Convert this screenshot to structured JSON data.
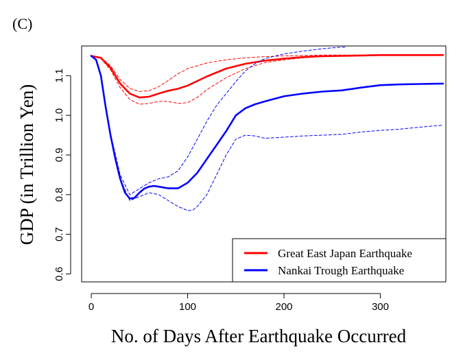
{
  "panel_label": "(C)",
  "chart_data": {
    "type": "line",
    "title": "",
    "xlabel": "No. of Days After Earthquake Occurred",
    "ylabel": "GDP (in Trillion Yen)",
    "xlim": [
      -10,
      368
    ],
    "ylim": [
      0.58,
      1.175
    ],
    "xticks": [
      0,
      100,
      200,
      300
    ],
    "yticks": [
      0.6,
      0.7,
      0.8,
      0.9,
      1.0,
      1.1
    ],
    "yticklabels": [
      "0.6",
      "0.7",
      "0.8",
      "0.9",
      "1.0",
      "1.1"
    ],
    "grid": false,
    "legend_position": "bottom-right",
    "series": [
      {
        "name": "Great East Japan Earthquake",
        "color": "#ff0000",
        "style": "solid",
        "x": [
          0,
          10,
          20,
          30,
          40,
          50,
          60,
          70,
          80,
          90,
          100,
          120,
          140,
          160,
          180,
          200,
          220,
          240,
          260,
          280,
          300,
          320,
          340,
          365
        ],
        "y": [
          1.15,
          1.145,
          1.12,
          1.08,
          1.055,
          1.045,
          1.047,
          1.055,
          1.062,
          1.067,
          1.075,
          1.098,
          1.118,
          1.13,
          1.138,
          1.143,
          1.147,
          1.149,
          1.15,
          1.151,
          1.152,
          1.152,
          1.152,
          1.152
        ]
      },
      {
        "name": "Great East Japan Earthquake upper band",
        "color": "#ff0000",
        "style": "dashed",
        "x": [
          0,
          10,
          20,
          30,
          40,
          50,
          60,
          70,
          80,
          90,
          100,
          120,
          140,
          160,
          180,
          200,
          220,
          240,
          260,
          280,
          300,
          365
        ],
        "y": [
          1.15,
          1.146,
          1.125,
          1.09,
          1.068,
          1.06,
          1.062,
          1.072,
          1.088,
          1.105,
          1.118,
          1.132,
          1.14,
          1.145,
          1.148,
          1.15,
          1.151,
          1.152,
          1.152,
          1.152,
          1.152,
          1.152
        ]
      },
      {
        "name": "Great East Japan Earthquake lower band",
        "color": "#ff0000",
        "style": "dashed",
        "x": [
          0,
          10,
          20,
          30,
          40,
          50,
          60,
          70,
          80,
          90,
          100,
          110,
          120,
          140,
          160,
          180,
          200,
          220,
          240,
          260,
          280,
          300,
          365
        ],
        "y": [
          1.15,
          1.143,
          1.115,
          1.07,
          1.04,
          1.028,
          1.03,
          1.035,
          1.035,
          1.03,
          1.032,
          1.045,
          1.065,
          1.095,
          1.118,
          1.133,
          1.14,
          1.145,
          1.148,
          1.15,
          1.151,
          1.152,
          1.152
        ]
      },
      {
        "name": "Nankai Trough Earthquake",
        "color": "#0000ff",
        "style": "solid",
        "x": [
          0,
          5,
          10,
          15,
          20,
          25,
          30,
          35,
          40,
          45,
          50,
          55,
          60,
          65,
          70,
          80,
          90,
          100,
          110,
          120,
          130,
          140,
          150,
          160,
          170,
          180,
          200,
          220,
          240,
          260,
          280,
          300,
          320,
          340,
          365
        ],
        "y": [
          1.15,
          1.14,
          1.1,
          1.02,
          0.95,
          0.89,
          0.84,
          0.805,
          0.79,
          0.792,
          0.805,
          0.815,
          0.82,
          0.822,
          0.82,
          0.816,
          0.816,
          0.83,
          0.855,
          0.89,
          0.925,
          0.96,
          1.0,
          1.018,
          1.028,
          1.035,
          1.048,
          1.055,
          1.06,
          1.063,
          1.07,
          1.076,
          1.078,
          1.079,
          1.08
        ]
      },
      {
        "name": "Nankai Trough Earthquake upper band",
        "color": "#0000ff",
        "style": "dashed",
        "x": [
          0,
          5,
          10,
          20,
          30,
          40,
          50,
          60,
          70,
          80,
          90,
          100,
          110,
          120,
          130,
          140,
          150,
          160,
          170,
          180,
          200,
          220,
          240,
          260,
          265
        ],
        "y": [
          1.15,
          1.14,
          1.1,
          0.955,
          0.85,
          0.8,
          0.815,
          0.83,
          0.84,
          0.845,
          0.86,
          0.895,
          0.94,
          0.985,
          1.025,
          1.055,
          1.085,
          1.112,
          1.13,
          1.143,
          1.155,
          1.162,
          1.168,
          1.172,
          1.172
        ]
      },
      {
        "name": "Nankai Trough Earthquake lower band",
        "color": "#0000ff",
        "style": "dashed",
        "x": [
          0,
          5,
          10,
          20,
          30,
          40,
          50,
          60,
          70,
          80,
          90,
          100,
          105,
          110,
          120,
          130,
          140,
          150,
          160,
          170,
          180,
          200,
          220,
          240,
          260,
          280,
          300,
          320,
          340,
          365
        ],
        "y": [
          1.15,
          1.14,
          1.1,
          0.95,
          0.84,
          0.785,
          0.795,
          0.805,
          0.8,
          0.785,
          0.77,
          0.76,
          0.76,
          0.77,
          0.8,
          0.85,
          0.9,
          0.94,
          0.95,
          0.948,
          0.942,
          0.945,
          0.948,
          0.95,
          0.952,
          0.958,
          0.962,
          0.965,
          0.97,
          0.975
        ]
      }
    ],
    "legend": [
      {
        "label": "Great East Japan Earthquake",
        "color": "#ff0000"
      },
      {
        "label": "Nankai Trough Earthquake",
        "color": "#0000ff"
      }
    ]
  }
}
